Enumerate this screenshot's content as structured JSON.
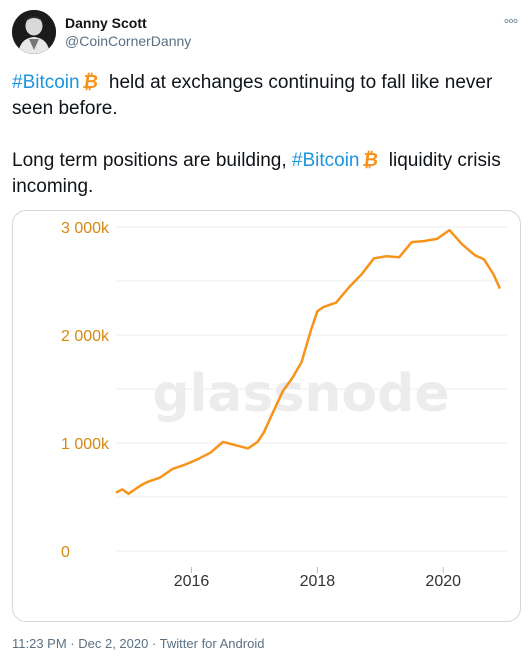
{
  "tweet": {
    "author_name": "Danny Scott",
    "author_handle": "@CoinCornerDanny",
    "line1_hashtag": "#Bitcoin",
    "line1_rest": " held at exchanges continuing to fall like never seen before.",
    "line2_start": "Long term positions are building, ",
    "line2_hashtag": "#Bitcoin",
    "line2_rest": " liquidity crisis incoming.",
    "timestamp": "11:23 PM · Dec 2, 2020",
    "separator": " · ",
    "source": "Twitter for Android"
  },
  "icons": {
    "more": "more-dots-icon",
    "bitcoin": "bitcoin-icon",
    "bitcoin_color": "#f7931a"
  },
  "chart_data": {
    "type": "line",
    "watermark": "glassnode",
    "line_color": "#f7931a",
    "tick_color": "#d48a12",
    "x_ticks": [
      "2016",
      "2018",
      "2020"
    ],
    "y_ticks": [
      "0",
      "1 000k",
      "2 000k",
      "3 000k"
    ],
    "xlim": [
      2014.8,
      2020.95
    ],
    "ylim": [
      0,
      3000
    ],
    "series": [
      {
        "x": [
          2014.8,
          2014.9,
          2015.0,
          2015.1,
          2015.2,
          2015.3,
          2015.5,
          2015.7,
          2015.9,
          2016.1,
          2016.3,
          2016.5,
          2016.7,
          2016.9,
          2017.05,
          2017.15,
          2017.3,
          2017.45,
          2017.6,
          2017.75,
          2017.9,
          2018.0,
          2018.1,
          2018.3,
          2018.5,
          2018.7,
          2018.9,
          2019.1,
          2019.3,
          2019.5,
          2019.7,
          2019.9,
          2020.1,
          2020.3,
          2020.5,
          2020.65,
          2020.8,
          2020.9
        ],
        "y": [
          540,
          570,
          530,
          570,
          610,
          640,
          680,
          760,
          800,
          850,
          910,
          1010,
          980,
          950,
          1010,
          1100,
          1290,
          1480,
          1600,
          1750,
          2050,
          2220,
          2260,
          2300,
          2440,
          2560,
          2710,
          2730,
          2720,
          2860,
          2870,
          2890,
          2970,
          2840,
          2740,
          2700,
          2560,
          2430
        ]
      }
    ]
  }
}
